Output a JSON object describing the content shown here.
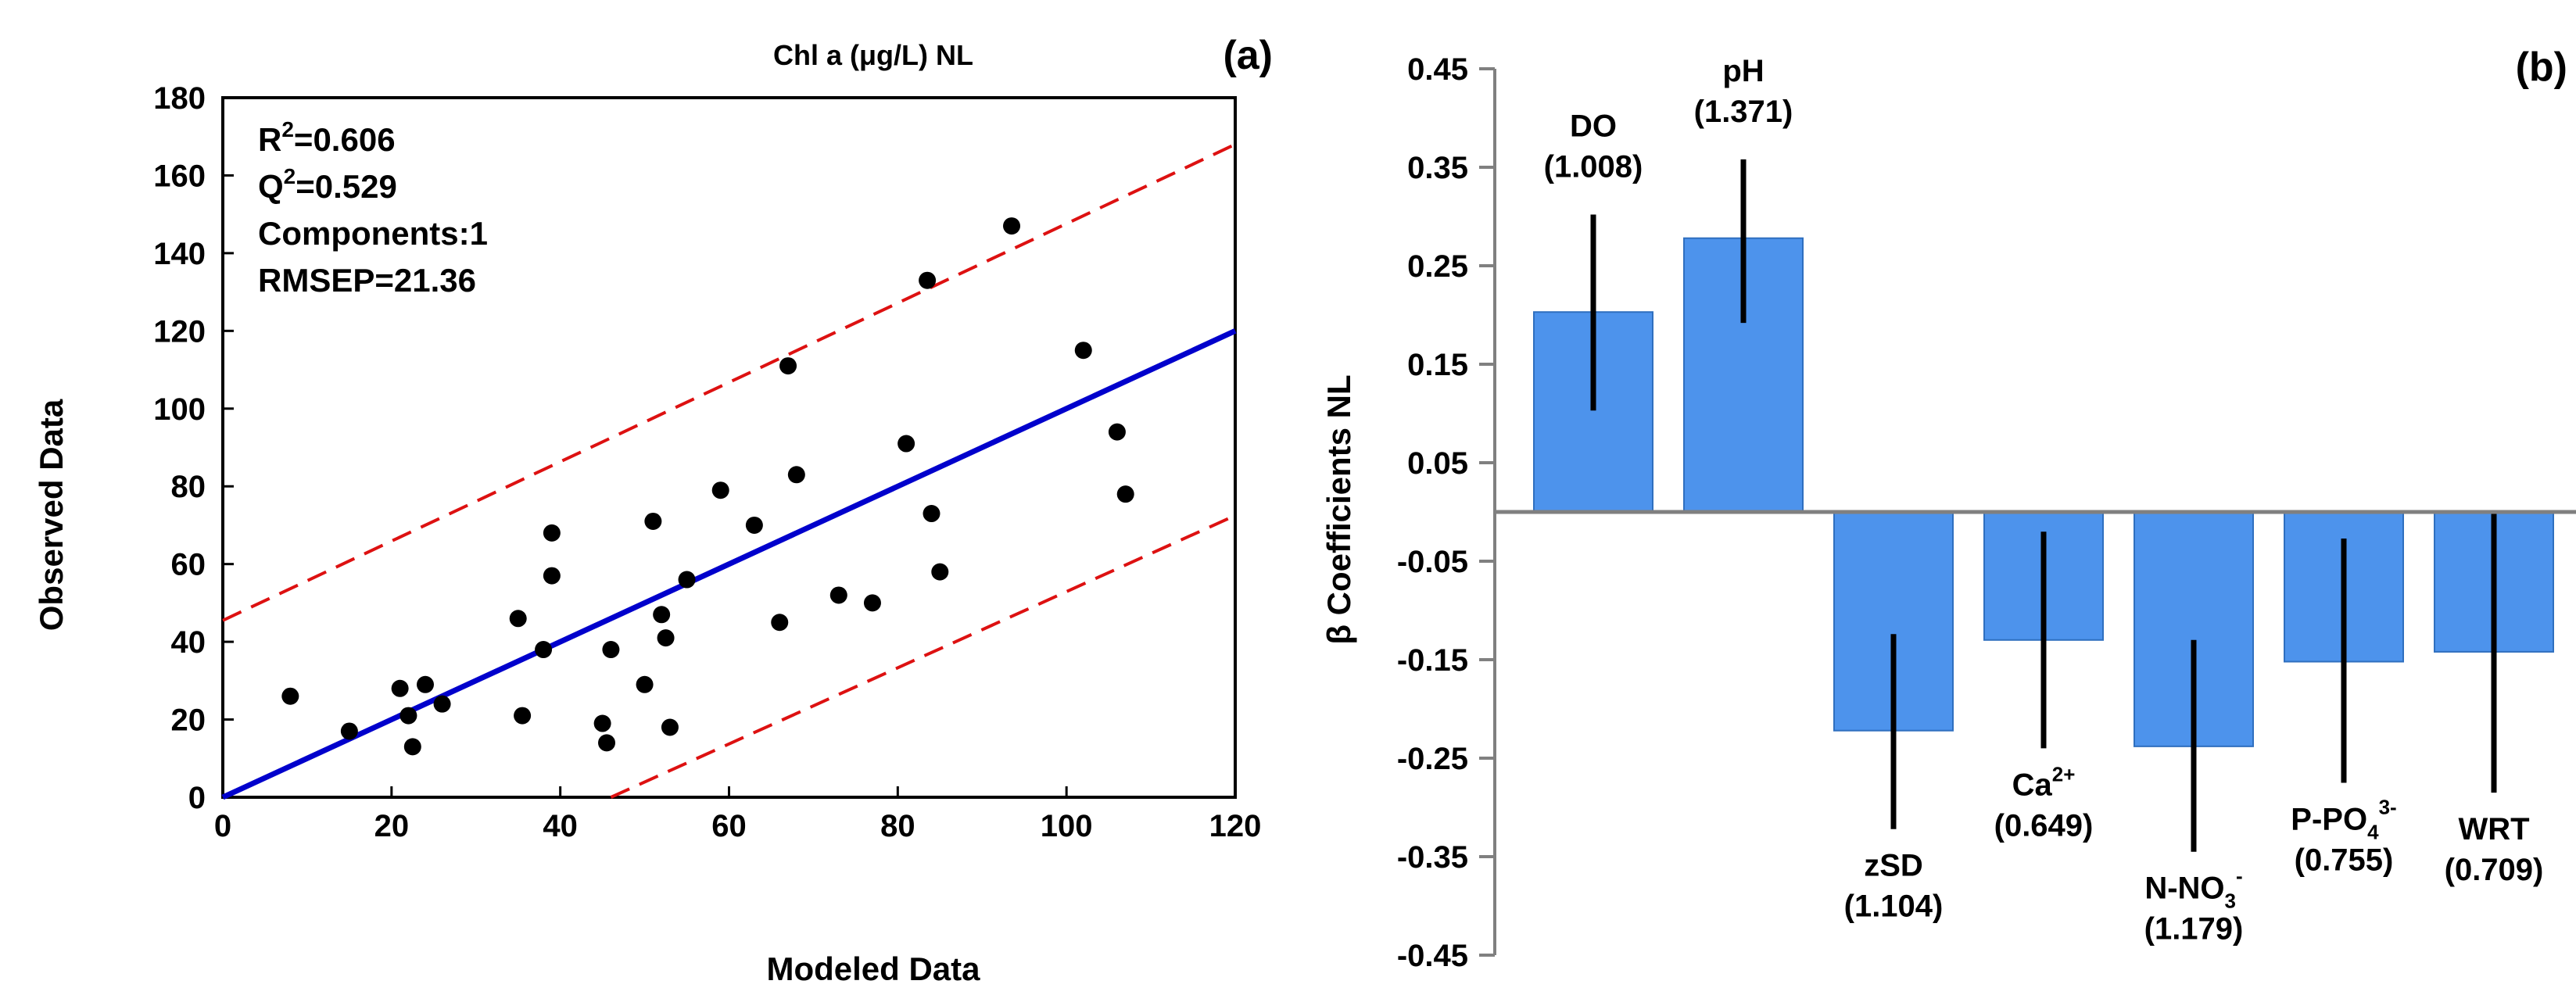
{
  "chart_data": [
    {
      "type": "scatter",
      "panel_label": "(a)",
      "title_prefix": "Chl a (",
      "title_unit": "μg/L",
      "title_suffix": ") NL",
      "xlabel": "Modeled Data",
      "ylabel": "Observed Data",
      "xlim": [
        0,
        120
      ],
      "ylim": [
        0,
        180
      ],
      "x_ticks": [
        0,
        20,
        40,
        60,
        80,
        100,
        120
      ],
      "y_ticks": [
        0,
        20,
        40,
        60,
        80,
        100,
        120,
        140,
        160,
        180
      ],
      "stats": [
        {
          "base": "R",
          "sup": "2",
          "rest": "=0.606"
        },
        {
          "base": "Q",
          "sup": "2",
          "rest": "=0.529"
        },
        {
          "base": "Components:1",
          "sup": "",
          "rest": ""
        },
        {
          "base": "RMSEP=21.36",
          "sup": "",
          "rest": ""
        }
      ],
      "fit_line": {
        "x": [
          0,
          120
        ],
        "y": [
          0,
          120
        ],
        "color": "#0000cc"
      },
      "bounds": [
        {
          "x": [
            0,
            120
          ],
          "y": [
            45.5,
            168
          ],
          "color": "#dd1111"
        },
        {
          "x": [
            46,
            120
          ],
          "y": [
            0,
            72.5
          ],
          "color": "#dd1111"
        }
      ],
      "points": [
        [
          8,
          26
        ],
        [
          15,
          17
        ],
        [
          21,
          28
        ],
        [
          22,
          21
        ],
        [
          22.5,
          13
        ],
        [
          24,
          29
        ],
        [
          26,
          24
        ],
        [
          35,
          46
        ],
        [
          35.5,
          21
        ],
        [
          38,
          38
        ],
        [
          39,
          57
        ],
        [
          39,
          68
        ],
        [
          45,
          19
        ],
        [
          45.5,
          14
        ],
        [
          46,
          38
        ],
        [
          50,
          29
        ],
        [
          51,
          71
        ],
        [
          52,
          47
        ],
        [
          52.5,
          41
        ],
        [
          53,
          18
        ],
        [
          55,
          56
        ],
        [
          59,
          79
        ],
        [
          63,
          70
        ],
        [
          66,
          45
        ],
        [
          67,
          111
        ],
        [
          68,
          83
        ],
        [
          73,
          52
        ],
        [
          77,
          50
        ],
        [
          81,
          91
        ],
        [
          83.5,
          133
        ],
        [
          84,
          73
        ],
        [
          85,
          58
        ],
        [
          93.5,
          147
        ],
        [
          102,
          115
        ],
        [
          106,
          94
        ],
        [
          107,
          78
        ]
      ]
    },
    {
      "type": "bar",
      "panel_label": "(b)",
      "ylabel": "β Coefficients NL",
      "ylim": [
        -0.45,
        0.45
      ],
      "y_ticks": [
        0.45,
        0.35,
        0.25,
        0.15,
        0.05,
        -0.05,
        -0.15,
        -0.25,
        -0.35,
        -0.45
      ],
      "y_tick_labels": [
        "0.45",
        "0.35",
        "0.25",
        "0.15",
        "0.05",
        "-0.05",
        "-0.15",
        "-0.25",
        "-0.35",
        "-0.45"
      ],
      "bar_color": "#4d93ec",
      "bars": [
        {
          "name": "DO",
          "sub": "",
          "sup": "",
          "vip": "(1.008)",
          "value": 0.203,
          "err_low": 0.103,
          "err_high": 0.302
        },
        {
          "name": "pH",
          "sub": "",
          "sup": "",
          "vip": "(1.371)",
          "value": 0.278,
          "err_low": 0.192,
          "err_high": 0.358
        },
        {
          "name": "zSD",
          "sub": "",
          "sup": "",
          "vip": "(1.104)",
          "value": -0.222,
          "err_low": -0.322,
          "err_high": -0.124
        },
        {
          "name": "Ca",
          "sub": "",
          "sup": "2+",
          "vip": "(0.649)",
          "value": -0.13,
          "err_low": -0.24,
          "err_high": -0.02
        },
        {
          "name": "N-NO",
          "sub": "3",
          "sup": "-",
          "vip": "(1.179)",
          "value": -0.238,
          "err_low": -0.345,
          "err_high": -0.13
        },
        {
          "name": "P-PO",
          "sub": "4",
          "sup": "3-",
          "vip": "(0.755)",
          "value": -0.152,
          "err_low": -0.275,
          "err_high": -0.027
        },
        {
          "name": "WRT",
          "sub": "",
          "sup": "",
          "vip": "(0.709)",
          "value": -0.142,
          "err_low": -0.285,
          "err_high": 0.0
        }
      ]
    }
  ]
}
